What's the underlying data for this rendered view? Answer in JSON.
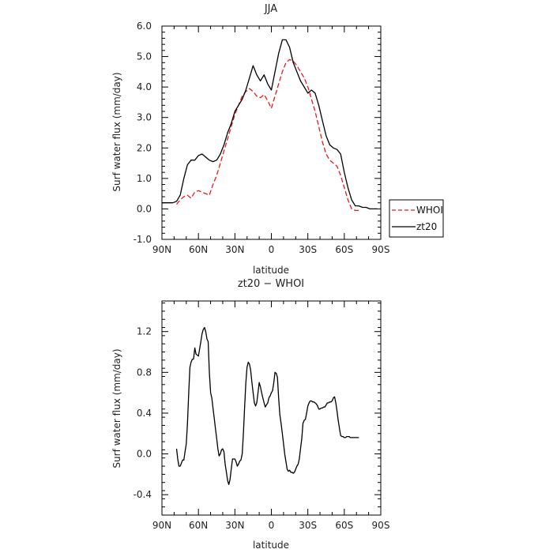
{
  "chart_data": [
    {
      "type": "line",
      "title": "JJA",
      "xlabel": "latitude",
      "ylabel": "Surf water flux (mm/day)",
      "xlim": [
        90,
        -90
      ],
      "ylim": [
        -1.0,
        6.0
      ],
      "x_ticks": [
        90,
        60,
        30,
        0,
        -30,
        -60,
        -90
      ],
      "x_tick_labels": [
        "90N",
        "60N",
        "30N",
        "0",
        "30S",
        "60S",
        "90S"
      ],
      "y_ticks": [
        -1.0,
        0.0,
        1.0,
        2.0,
        3.0,
        4.0,
        5.0,
        6.0
      ],
      "y_tick_labels": [
        "-1.0",
        "0.0",
        "1.0",
        "2.0",
        "3.0",
        "4.0",
        "5.0",
        "6.0"
      ],
      "legend": {
        "placement": "right",
        "entries": [
          "WHOI",
          "zt20"
        ]
      },
      "series": [
        {
          "name": "WHOI",
          "color": "#e8191c",
          "style": "dashed",
          "x": [
            78,
            75,
            72,
            69,
            66,
            63,
            60,
            57,
            54,
            51,
            48,
            45,
            42,
            39,
            36,
            33,
            30,
            27,
            24,
            21,
            18,
            15,
            12,
            9,
            6,
            3,
            0,
            -3,
            -6,
            -9,
            -12,
            -15,
            -18,
            -21,
            -24,
            -27,
            -30,
            -33,
            -36,
            -39,
            -42,
            -45,
            -48,
            -51,
            -54,
            -57,
            -60,
            -63,
            -66,
            -69,
            -72
          ],
          "y": [
            0.15,
            0.3,
            0.4,
            0.45,
            0.35,
            0.55,
            0.6,
            0.55,
            0.5,
            0.45,
            0.8,
            1.1,
            1.5,
            1.9,
            2.3,
            2.7,
            3.1,
            3.4,
            3.7,
            3.85,
            3.95,
            3.85,
            3.7,
            3.65,
            3.75,
            3.55,
            3.3,
            3.7,
            4.1,
            4.5,
            4.8,
            4.9,
            4.85,
            4.7,
            4.5,
            4.3,
            4.0,
            3.6,
            3.2,
            2.7,
            2.2,
            1.8,
            1.6,
            1.5,
            1.4,
            1.1,
            0.7,
            0.3,
            0.0,
            -0.05,
            -0.05
          ]
        },
        {
          "name": "zt20",
          "color": "#000000",
          "style": "solid",
          "x": [
            90,
            84,
            81,
            78,
            75,
            72,
            69,
            66,
            63,
            60,
            57,
            54,
            51,
            48,
            45,
            42,
            39,
            36,
            33,
            30,
            27,
            24,
            21,
            18,
            15,
            12,
            9,
            6,
            3,
            0,
            -3,
            -6,
            -9,
            -12,
            -15,
            -18,
            -21,
            -24,
            -27,
            -30,
            -33,
            -36,
            -39,
            -42,
            -45,
            -48,
            -51,
            -54,
            -57,
            -60,
            -63,
            -66,
            -69,
            -72,
            -75,
            -78,
            -81,
            -84,
            -87
          ],
          "y": [
            0.2,
            0.2,
            0.2,
            0.25,
            0.45,
            1.0,
            1.45,
            1.6,
            1.6,
            1.75,
            1.8,
            1.7,
            1.6,
            1.55,
            1.6,
            1.8,
            2.1,
            2.5,
            2.8,
            3.2,
            3.4,
            3.6,
            3.9,
            4.3,
            4.7,
            4.4,
            4.2,
            4.4,
            4.1,
            3.9,
            4.5,
            5.1,
            5.55,
            5.55,
            5.3,
            4.8,
            4.5,
            4.2,
            4.0,
            3.8,
            3.9,
            3.8,
            3.4,
            2.9,
            2.4,
            2.1,
            2.0,
            1.95,
            1.8,
            1.2,
            0.7,
            0.3,
            0.1,
            0.1,
            0.05,
            0.05,
            0.0,
            0.0,
            0.0
          ]
        }
      ]
    },
    {
      "type": "line",
      "title": "zt20 − WHOI",
      "xlabel": "latitude",
      "ylabel": "Surf water flux (mm/day)",
      "xlim": [
        90,
        -90
      ],
      "ylim": [
        -0.6,
        1.5
      ],
      "x_ticks": [
        90,
        60,
        30,
        0,
        -30,
        -60,
        -90
      ],
      "x_tick_labels": [
        "90N",
        "60N",
        "30N",
        "0",
        "30S",
        "60S",
        "90S"
      ],
      "y_ticks": [
        -0.4,
        0.0,
        0.4,
        0.8,
        1.2
      ],
      "y_tick_labels": [
        "-0.4",
        "0.0",
        "0.4",
        "0.8",
        "1.2"
      ],
      "series": [
        {
          "color": "#000000",
          "style": "solid",
          "x": [
            78,
            77,
            76,
            75,
            73,
            72,
            71,
            70,
            69,
            68,
            67,
            66,
            65,
            64,
            63,
            62,
            61,
            60,
            59,
            58,
            57,
            56,
            55,
            54,
            53,
            52,
            51,
            50,
            49,
            48,
            47,
            46,
            45,
            44,
            43,
            42,
            41,
            40,
            39,
            38,
            37,
            36,
            35,
            34,
            33,
            32,
            31,
            30,
            29,
            28,
            27,
            26,
            25,
            24,
            23,
            22,
            21,
            20,
            19,
            18,
            17,
            16,
            15,
            14,
            13,
            12,
            11,
            10,
            9,
            8,
            7,
            6,
            5,
            4,
            3,
            2,
            1,
            0,
            -1,
            -2,
            -3,
            -4,
            -5,
            -6,
            -7,
            -8,
            -9,
            -10,
            -11,
            -12,
            -13,
            -14,
            -15,
            -16,
            -17,
            -18,
            -19,
            -20,
            -21,
            -22,
            -23,
            -24,
            -25,
            -26,
            -27,
            -28,
            -29,
            -30,
            -31,
            -32,
            -33,
            -34,
            -35,
            -36,
            -37,
            -38,
            -39,
            -40,
            -41,
            -42,
            -43,
            -44,
            -45,
            -46,
            -47,
            -48,
            -49,
            -50,
            -51,
            -52,
            -53,
            -54,
            -55,
            -56,
            -57,
            -58,
            -59,
            -60,
            -61,
            -62,
            -63,
            -64,
            -65,
            -66,
            -67,
            -68,
            -69,
            -70,
            -71,
            -72
          ],
          "y": [
            0.05,
            -0.05,
            -0.12,
            -0.12,
            -0.06,
            -0.06,
            0.02,
            0.1,
            0.3,
            0.6,
            0.85,
            0.9,
            0.93,
            0.93,
            1.04,
            0.98,
            0.97,
            0.96,
            1.03,
            1.1,
            1.18,
            1.22,
            1.24,
            1.2,
            1.13,
            1.1,
            0.8,
            0.6,
            0.55,
            0.45,
            0.35,
            0.25,
            0.15,
            0.05,
            -0.02,
            0.0,
            0.04,
            0.05,
            0.02,
            -0.1,
            -0.18,
            -0.26,
            -0.3,
            -0.25,
            -0.15,
            -0.05,
            -0.05,
            -0.05,
            -0.08,
            -0.12,
            -0.1,
            -0.07,
            -0.06,
            0.0,
            0.2,
            0.45,
            0.7,
            0.85,
            0.9,
            0.88,
            0.82,
            0.7,
            0.6,
            0.5,
            0.47,
            0.5,
            0.6,
            0.7,
            0.66,
            0.6,
            0.55,
            0.5,
            0.46,
            0.48,
            0.5,
            0.55,
            0.57,
            0.6,
            0.62,
            0.7,
            0.8,
            0.79,
            0.75,
            0.55,
            0.38,
            0.3,
            0.2,
            0.1,
            0.0,
            -0.08,
            -0.15,
            -0.17,
            -0.16,
            -0.18,
            -0.18,
            -0.19,
            -0.18,
            -0.15,
            -0.12,
            -0.1,
            -0.05,
            0.05,
            0.15,
            0.3,
            0.33,
            0.34,
            0.4,
            0.47,
            0.5,
            0.52,
            0.52,
            0.51,
            0.51,
            0.5,
            0.49,
            0.47,
            0.44,
            0.44,
            0.45,
            0.45,
            0.46,
            0.46,
            0.48,
            0.5,
            0.5,
            0.51,
            0.51,
            0.52,
            0.55,
            0.56,
            0.5,
            0.42,
            0.33,
            0.25,
            0.18,
            0.17,
            0.17,
            0.16,
            0.16,
            0.17,
            0.17,
            0.17,
            0.16,
            0.16,
            0.16,
            0.16,
            0.16,
            0.16,
            0.16,
            0.16
          ]
        }
      ]
    }
  ]
}
